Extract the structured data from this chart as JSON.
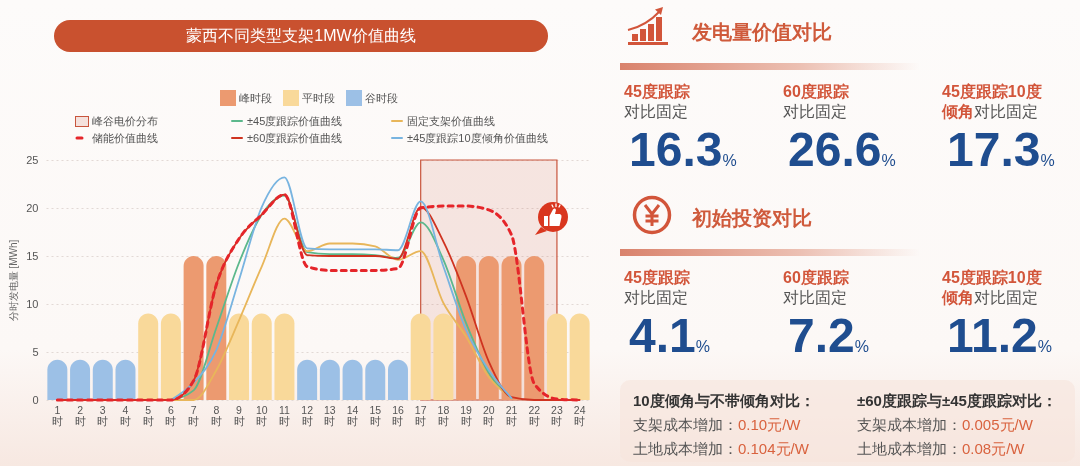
{
  "chart_data": [
    {
      "type": "bar",
      "title": "蒙西不同类型支架1MW价值曲线",
      "ylabel": "分时发电量 [MWh]",
      "categories": [
        "1\n时",
        "2\n时",
        "3\n时",
        "4\n时",
        "5\n时",
        "6\n时",
        "7\n时",
        "8\n时",
        "9\n时",
        "10\n时",
        "11\n时",
        "12\n时",
        "13\n时",
        "14\n时",
        "15\n时",
        "16\n时",
        "17\n时",
        "18\n时",
        "19\n时",
        "20\n时",
        "21\n时",
        "22\n时",
        "23\n时",
        "24\n时"
      ],
      "series": [
        {
          "name": "峰时段",
          "type": "bar",
          "color": "#ec9a70",
          "values": [
            null,
            null,
            null,
            null,
            null,
            null,
            15,
            15,
            null,
            null,
            null,
            null,
            null,
            null,
            null,
            null,
            null,
            null,
            15,
            15,
            15,
            15,
            null,
            null
          ]
        },
        {
          "name": "平时段",
          "type": "bar",
          "color": "#f9d99a",
          "values": [
            null,
            null,
            null,
            null,
            9,
            9,
            null,
            null,
            9,
            9,
            9,
            null,
            null,
            null,
            null,
            null,
            9,
            9,
            null,
            null,
            null,
            null,
            9,
            9
          ]
        },
        {
          "name": "谷时段",
          "type": "bar",
          "color": "#9cc0e6",
          "values": [
            4.2,
            4.2,
            4.2,
            4.2,
            null,
            null,
            null,
            null,
            null,
            null,
            null,
            4.2,
            4.2,
            4.2,
            4.2,
            4.2,
            null,
            null,
            null,
            null,
            null,
            null,
            null,
            null
          ]
        },
        {
          "name": "±45度跟踪价值曲线",
          "type": "line",
          "color": "#5cb88c",
          "values": [
            null,
            null,
            null,
            null,
            null,
            0,
            1.0,
            7.5,
            14.3,
            19.3,
            21.3,
            15.4,
            15.2,
            15.2,
            15.1,
            14.8,
            18.5,
            14.6,
            8.0,
            2.8,
            0.2,
            null,
            null,
            null
          ]
        },
        {
          "name": "固定支架价值曲线",
          "type": "line",
          "color": "#e8b65a",
          "values": [
            null,
            null,
            null,
            null,
            null,
            0,
            0,
            3.1,
            8.3,
            13.9,
            18.9,
            15.5,
            16.3,
            16.3,
            16,
            14.6,
            15.5,
            10.1,
            6.6,
            2.4,
            0.2,
            null,
            null,
            null
          ]
        },
        {
          "name": "储能价值曲线",
          "type": "line",
          "line_style": "dashed",
          "color": "#e5252a",
          "values": [
            0,
            0,
            0,
            0,
            0,
            0,
            2.0,
            12.0,
            16.8,
            19.3,
            21.4,
            13.9,
            13.5,
            13.5,
            13.5,
            13.7,
            20,
            20.2,
            20.2,
            19.8,
            17.2,
            1.7,
            0.1,
            0
          ]
        },
        {
          "name": "±60度跟踪价值曲线",
          "type": "line",
          "color": "#cf3320",
          "values": [
            0,
            0,
            0,
            0,
            0,
            0,
            2.0,
            12.0,
            16.8,
            19.3,
            21.4,
            15.1,
            15,
            15,
            15,
            14.7,
            20.1,
            16.5,
            10.8,
            4.0,
            0.3,
            0,
            0,
            0
          ]
        },
        {
          "name": "±45度跟踪10度倾角价值曲线",
          "type": "line",
          "color": "#78b4e0",
          "values": [
            null,
            null,
            null,
            null,
            null,
            0,
            1.8,
            5.2,
            12.5,
            20.1,
            23.2,
            15.8,
            15.7,
            15.7,
            15.7,
            15.6,
            20.7,
            13.9,
            7.3,
            3.1,
            0.2,
            null,
            null,
            null
          ]
        }
      ],
      "bands": [
        {
          "axis": "x",
          "from": "17\n时",
          "to": "23\n时",
          "label": "峰谷电价分布",
          "color": "#c8553d"
        }
      ],
      "ylim": [
        0,
        25
      ],
      "yticks": [
        0,
        5,
        10,
        15,
        20,
        25
      ],
      "grid": "y",
      "legend": "top"
    },
    {
      "type": "other",
      "title": "发电量价值对比",
      "categories": [
        "45度跟踪对比固定",
        "60度跟踪对比固定",
        "45度跟踪10度倾角对比固定"
      ],
      "values": [
        16.3,
        26.6,
        17.3
      ],
      "value_labels": [
        "16.3%",
        "26.6%",
        "17.3%"
      ]
    },
    {
      "type": "other",
      "title": "初始投资对比",
      "categories": [
        "45度跟踪对比固定",
        "60度跟踪对比固定",
        "45度跟踪10度倾角对比固定"
      ],
      "values": [
        4.1,
        7.2,
        11.2
      ],
      "value_labels": [
        "4.1%",
        "7.2%",
        "11.2%"
      ],
      "annotations": [
        "10度倾角与不带倾角对比：",
        "支架成本增加：0.10元/W",
        "土地成本增加：0.104元/W",
        "±60度跟踪与±45度跟踪对比：",
        "支架成本增加：0.005元/W",
        "土地成本增加：0.08元/W"
      ]
    }
  ]
}
